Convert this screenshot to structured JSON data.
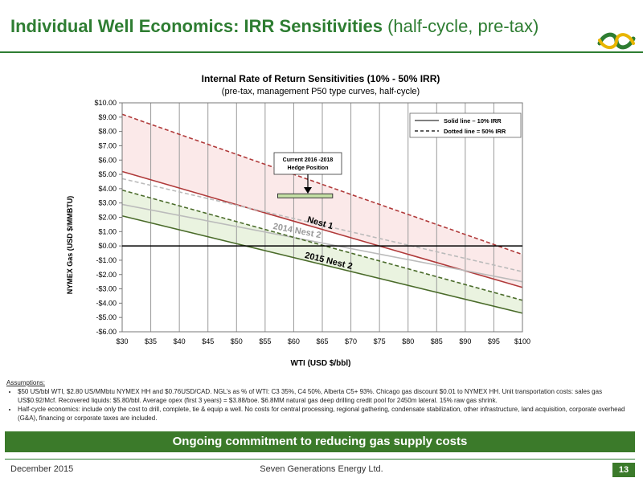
{
  "slide": {
    "title_main": "Individual Well Economics: IRR Sensitivities",
    "title_sub": "(half-cycle, pre-tax)"
  },
  "chart_data": {
    "type": "line",
    "title": "Internal Rate of Return Sensitivities (10% - 50% IRR)",
    "subtitle": "(pre-tax, management P50 type curves, half-cycle)",
    "xlabel": "WTI (USD $/bbl)",
    "ylabel": "NYMEX Gas (USD $/MMBTU)",
    "xlim": [
      30,
      100
    ],
    "ylim": [
      -6,
      10
    ],
    "x_ticks": [
      30,
      35,
      40,
      45,
      50,
      55,
      60,
      65,
      70,
      75,
      80,
      85,
      90,
      95,
      100
    ],
    "x_tick_labels": [
      "$30",
      "$35",
      "$40",
      "$45",
      "$50",
      "$55",
      "$60",
      "$65",
      "$70",
      "$75",
      "$80",
      "$85",
      "$90",
      "$95",
      "$100"
    ],
    "y_ticks": [
      10,
      9,
      8,
      7,
      6,
      5,
      4,
      3,
      2,
      1,
      0,
      -1,
      -2,
      -3,
      -4,
      -5,
      -6
    ],
    "y_tick_labels": [
      "$10.00",
      "$9.00",
      "$8.00",
      "$7.00",
      "$6.00",
      "$5.00",
      "$4.00",
      "$3.00",
      "$2.00",
      "$1.00",
      "$0.00",
      "-$1.00",
      "-$2.00",
      "-$3.00",
      "-$4.00",
      "-$5.00",
      "-$6.00"
    ],
    "grid": "vertical",
    "legend": {
      "placement": "top-right",
      "items": [
        {
          "label": "Solid line – 10% IRR",
          "style": "solid"
        },
        {
          "label": "Dotted line = 50% IRR",
          "style": "dashed"
        }
      ]
    },
    "series": [
      {
        "label": "Nest 1",
        "color": "#b03a3a",
        "x": [
          30,
          100
        ],
        "irr10": [
          5.2,
          -2.9
        ],
        "irr50": [
          9.2,
          -0.6
        ],
        "band_fill": "#fbe9e9"
      },
      {
        "label": "2014 Nest 2",
        "color": "#bbbbbb",
        "x": [
          30,
          100
        ],
        "irr10": [
          2.9,
          -2.5
        ],
        "irr50": [
          4.7,
          -1.8
        ]
      },
      {
        "label": "2015 Nest 2",
        "color": "#4a6b2a",
        "x": [
          30,
          100
        ],
        "irr10": [
          2.1,
          -4.7
        ],
        "irr50": [
          3.9,
          -3.8
        ],
        "band_fill": "#eaf3e0"
      }
    ],
    "annotation": {
      "text_line1": "Current 2016 -2018",
      "text_line2": "Hedge Position",
      "x_range": [
        57.2,
        66.8
      ],
      "y": 3.5
    }
  },
  "assumptions": {
    "header": "Assumptions:",
    "items": [
      "$50 US/bbl WTI, $2.80 US/MMbtu NYMEX HH and $0.76USD/CAD. NGL’s as % of WTI: C3 35%, C4 50%, Alberta C5+ 93%. Chicago gas discount $0.01 to NYMEX HH. Unit transportation costs: sales gas US$0.92/Mcf. Recovered liquids: $5.80/bbl. Average opex (first 3 years) = $3.88/boe. $6.8MM natural gas deep drilling credit pool for 2450m lateral. 15% raw gas shrink.",
      "Half-cycle economics: include only the cost to drill, complete, tie & equip a well. No costs for central processing, regional gathering, condensate stabilization, other infrastructure, land acquisition, corporate overhead (G&A), financing or corporate taxes are included."
    ]
  },
  "banner": "Ongoing commitment to reducing gas supply costs",
  "footer": {
    "date": "December 2015",
    "company": "Seven Generations Energy Ltd.",
    "page": "13"
  },
  "colors": {
    "brand_green": "#2e7d32",
    "banner_green": "#3b7a2a"
  }
}
